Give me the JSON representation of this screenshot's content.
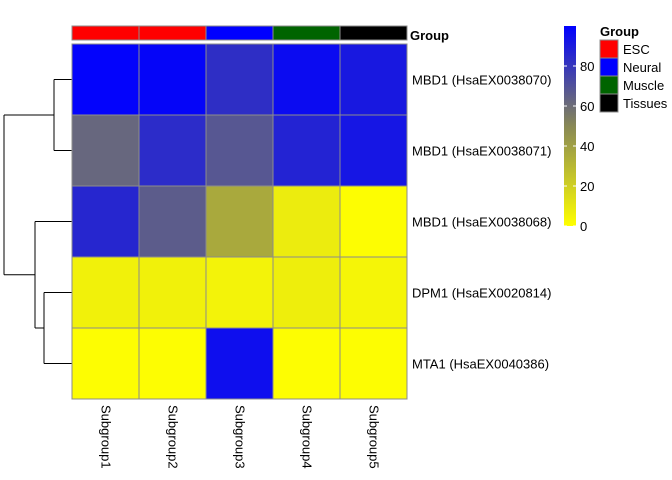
{
  "chart_data": {
    "type": "heatmap",
    "columns": [
      "Subgroup1",
      "Subgroup2",
      "Subgroup3",
      "Subgroup4",
      "Subgroup5"
    ],
    "rows": [
      "MBD1 (HsaEX0038070)",
      "MBD1 (HsaEX0038071)",
      "MBD1 (HsaEX0038068)",
      "DPM1 (HsaEX0020814)",
      "MTA1 (HsaEX0040386)"
    ],
    "values": [
      [
        99,
        98,
        83,
        96,
        91
      ],
      [
        62,
        84,
        68,
        87,
        92
      ],
      [
        86,
        66,
        36,
        8,
        1
      ],
      [
        6,
        6,
        5,
        7,
        4
      ],
      [
        1,
        1,
        95,
        1,
        1
      ]
    ],
    "column_annotation": {
      "label": "Group",
      "groups": [
        "ESC",
        "ESC",
        "Neural",
        "Muscle",
        "Tissues"
      ]
    },
    "legend": {
      "title": "Group",
      "entries": [
        {
          "label": "ESC",
          "color": "#ff0000"
        },
        {
          "label": "Neural",
          "color": "#0000ff"
        },
        {
          "label": "Muscle",
          "color": "#006400"
        },
        {
          "label": "Tissues",
          "color": "#000000"
        }
      ]
    },
    "colorbar": {
      "range": [
        0,
        100
      ],
      "ticks": [
        0,
        20,
        40,
        60,
        80
      ],
      "colors": {
        "low": "#ffff00",
        "mid": "#888855",
        "high": "#0000ff"
      }
    },
    "row_dendrogram": true,
    "legend_position": "right"
  }
}
